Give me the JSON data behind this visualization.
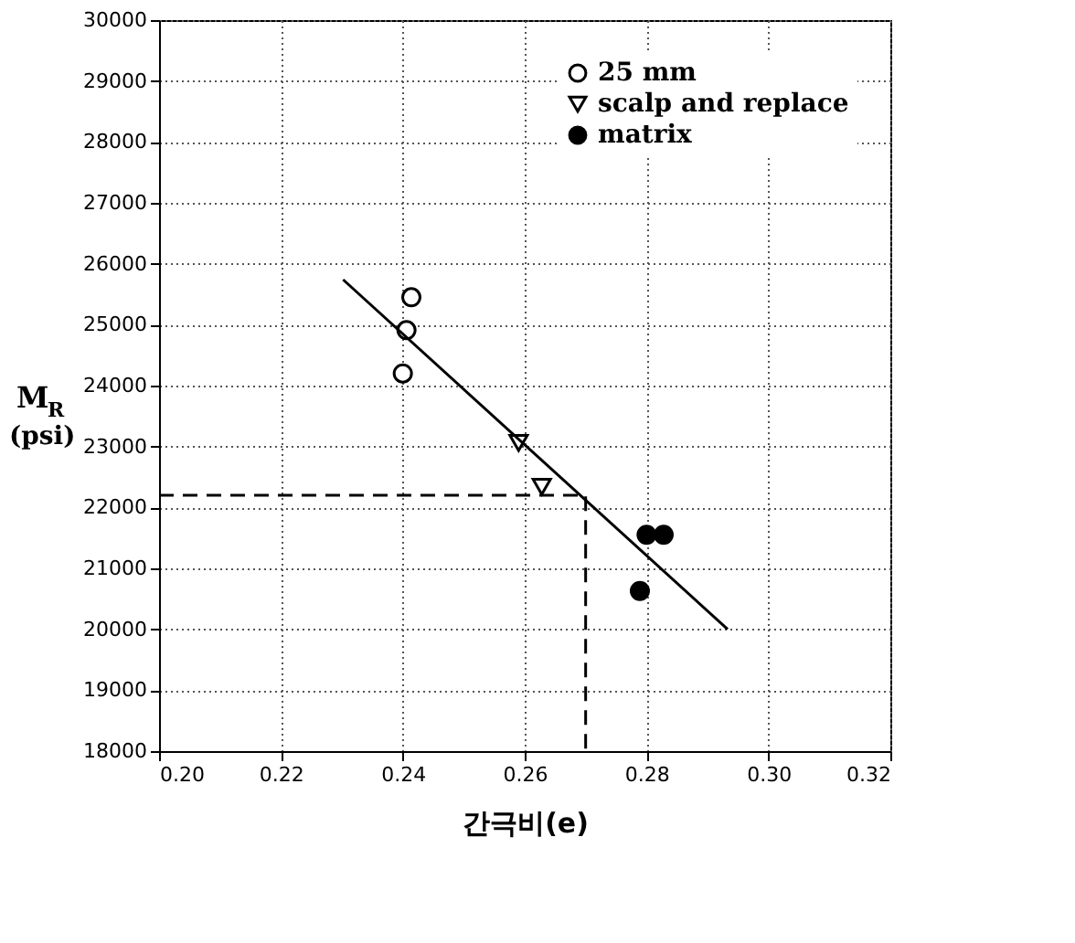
{
  "chart_data": {
    "type": "scatter",
    "xlabel": "간극비(e)",
    "ylabel": "M$_{R}$ (psi)",
    "xlim": [
      0.2,
      0.32
    ],
    "xticks": [
      {
        "value": 0.2,
        "label": "0.20"
      },
      0.22,
      0.24,
      0.26,
      0.28,
      {
        "value": 0.3,
        "label": "0.30"
      },
      0.32
    ],
    "ylim": [
      18000,
      30000
    ],
    "yticks": [
      18000,
      19000,
      20000,
      21000,
      22000,
      23000,
      24000,
      25000,
      26000,
      27000,
      28000,
      29000,
      30000
    ],
    "grid": true,
    "legend": "top right",
    "series": [
      {
        "name": "25 mm",
        "color": "#000000",
        "marker": "circle-open",
        "x": [
          0.2414,
          0.2406,
          0.24
        ],
        "values": [
          25450,
          24910,
          24200
        ]
      },
      {
        "name": "scalp and replace",
        "color": "#000000",
        "marker": "triangle-down-open",
        "x": [
          0.259,
          0.2628
        ],
        "values": [
          23060,
          22340
        ]
      },
      {
        "name": "matrix",
        "color": "#000000",
        "marker": "circle",
        "x": [
          0.28,
          0.2828,
          0.2789
        ],
        "values": [
          21550,
          21550,
          20630
        ]
      },
      {
        "type": "line",
        "color": "#000000",
        "marker": "none",
        "line_style": "solid",
        "x": [
          0.2302,
          0.2933
        ],
        "values": [
          25740,
          20000
        ]
      },
      {
        "type": "line",
        "color": "#000000",
        "marker": "none",
        "line_style": "dashed",
        "x": [
          0.2,
          0.27,
          0.27
        ],
        "values": [
          22200,
          22200,
          18000
        ]
      }
    ]
  }
}
